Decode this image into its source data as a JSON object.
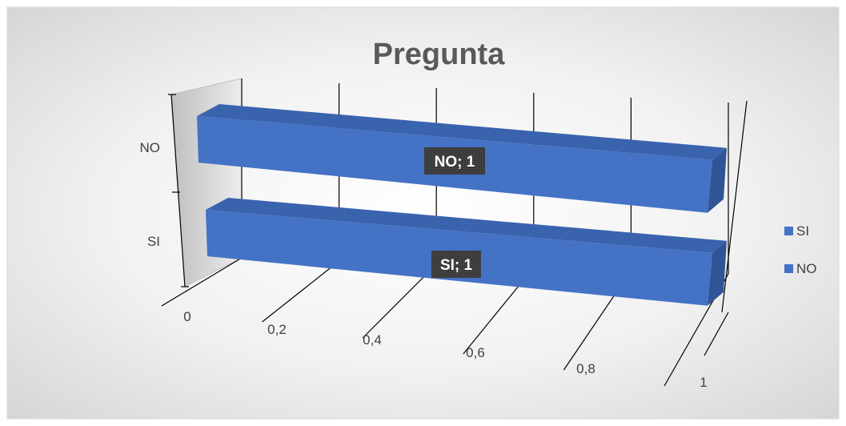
{
  "chart_data": {
    "type": "bar",
    "orientation": "horizontal",
    "three_d": true,
    "title": "Pregunta",
    "categories": [
      "SI",
      "NO"
    ],
    "series": [
      {
        "name": "SI",
        "values": [
          1,
          null
        ]
      },
      {
        "name": "NO",
        "values": [
          null,
          1
        ]
      }
    ],
    "data_labels": [
      "SI; 1",
      "NO; 1"
    ],
    "x_ticks": [
      "0",
      "0,2",
      "0,4",
      "0,6",
      "0,8",
      "1"
    ],
    "xlim": [
      0,
      1
    ],
    "xlabel": "",
    "ylabel": "",
    "grid": true,
    "legend_position": "right",
    "colors": {
      "bar": "#4472C4",
      "bar_top": "#3A63AE",
      "bar_side": "#2F5597",
      "title": "#595959",
      "label_box": "#404040"
    }
  }
}
